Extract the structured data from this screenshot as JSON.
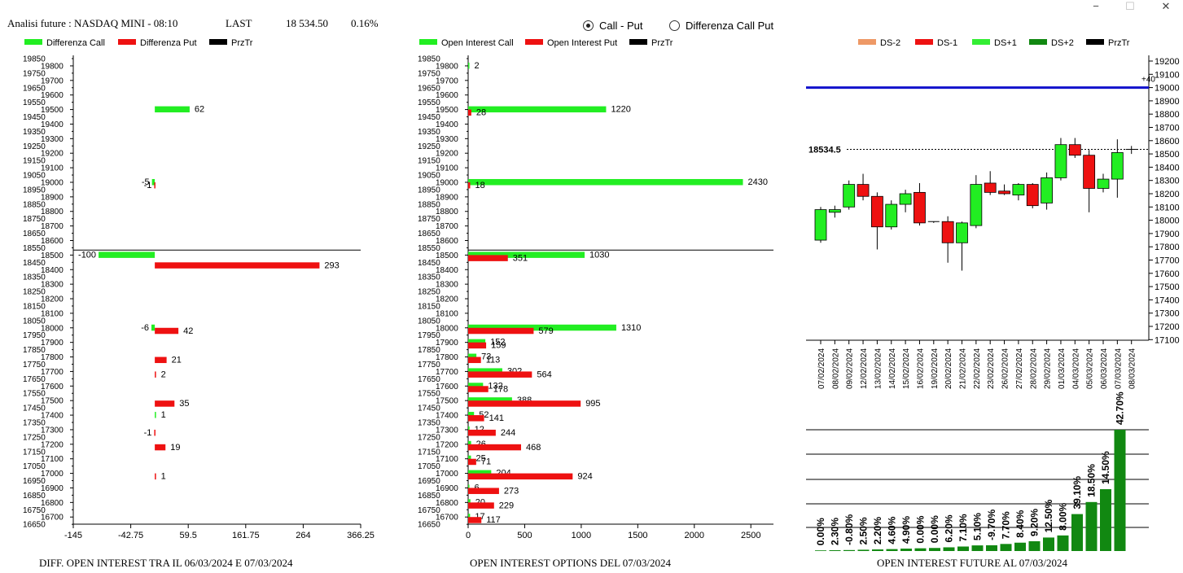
{
  "header": {
    "title": "Analisi future : NASDAQ MINI - 08:10",
    "last_label": "LAST",
    "last_value": "18 534.50",
    "change": "0.16%"
  },
  "window_controls": {
    "minimize": "−",
    "maximize": "☐",
    "close": "✕"
  },
  "radio": {
    "option1": "Call - Put",
    "option2": "Differenza Call Put",
    "selected": "Call - Put"
  },
  "colors": {
    "call": "#22ee22",
    "put": "#ee1111",
    "price": "#000000",
    "blue_level": "#1111cc",
    "future_bar": "#118811"
  },
  "chart_data": [
    {
      "type": "bar",
      "orientation": "horizontal",
      "caption": "DIFF. OPEN INTEREST TRA IL 06/03/2024 E 07/03/2024",
      "legend": [
        "Differenza Call",
        "Differenza Put",
        "PrzTr"
      ],
      "xlim": [
        -145,
        366.25
      ],
      "xticks": [
        "-145",
        "-42.75",
        "59.5",
        "161.75",
        "264",
        "366.25"
      ],
      "ylim": [
        16650,
        19850
      ],
      "price_line": 18534.5,
      "series": [
        {
          "name": "Differenza Call",
          "points": [
            [
              19500,
              62
            ],
            [
              19000,
              -5
            ],
            [
              18500,
              -100
            ],
            [
              18000,
              -6
            ],
            [
              17400,
              1
            ]
          ]
        },
        {
          "name": "Differenza Put",
          "points": [
            [
              19000,
              -1
            ],
            [
              18450,
              293
            ],
            [
              18000,
              42
            ],
            [
              17800,
              21
            ],
            [
              17700,
              2
            ],
            [
              17500,
              35
            ],
            [
              17300,
              -1
            ],
            [
              17200,
              19
            ],
            [
              17000,
              1
            ]
          ]
        }
      ]
    },
    {
      "type": "bar",
      "orientation": "horizontal",
      "caption": "OPEN INTEREST OPTIONS DEL 07/03/2024",
      "legend": [
        "Open Interest Call",
        "Open Interest Put",
        "PrzTr"
      ],
      "xlim": [
        0,
        2700
      ],
      "xticks": [
        "0",
        "500",
        "1000",
        "1500",
        "2000",
        "2500"
      ],
      "ylim": [
        16650,
        19850
      ],
      "price_line": 18534.5,
      "series": [
        {
          "name": "Open Interest Call",
          "points": [
            [
              19800,
              2
            ],
            [
              19500,
              1220
            ],
            [
              19000,
              2430
            ],
            [
              18500,
              1030
            ],
            [
              18000,
              1310
            ],
            [
              17900,
              152
            ],
            [
              17800,
              73
            ],
            [
              17700,
              302
            ],
            [
              17600,
              132
            ],
            [
              17500,
              388
            ],
            [
              17400,
              52
            ],
            [
              17300,
              12
            ],
            [
              17200,
              26
            ],
            [
              17100,
              25
            ],
            [
              17000,
              204
            ],
            [
              16900,
              6
            ],
            [
              16800,
              20
            ],
            [
              16700,
              17
            ]
          ]
        },
        {
          "name": "Open Interest Put",
          "points": [
            [
              19500,
              28
            ],
            [
              19000,
              18
            ],
            [
              18500,
              351
            ],
            [
              18000,
              579
            ],
            [
              17900,
              159
            ],
            [
              17800,
              113
            ],
            [
              17700,
              564
            ],
            [
              17600,
              178
            ],
            [
              17500,
              995
            ],
            [
              17400,
              141
            ],
            [
              17300,
              244
            ],
            [
              17200,
              468
            ],
            [
              17100,
              71
            ],
            [
              17000,
              924
            ],
            [
              16900,
              273
            ],
            [
              16800,
              229
            ],
            [
              16700,
              117
            ]
          ]
        }
      ]
    },
    {
      "type": "candlestick",
      "legend": [
        "DS-2",
        "DS-1",
        "DS+1",
        "DS+2",
        "PrzTr"
      ],
      "legend_colors": [
        "#ee9966",
        "#ee1111",
        "#33ee33",
        "#118811",
        "#000000"
      ],
      "ylim": [
        17100,
        19200
      ],
      "price_label": "18534.5",
      "price": 18534.5,
      "level": 19000,
      "level_label": "+40",
      "dates": [
        "07/02/2024",
        "08/02/2024",
        "09/02/2024",
        "12/02/2024",
        "13/02/2024",
        "14/02/2024",
        "15/02/2024",
        "16/02/2024",
        "19/02/2024",
        "20/02/2024",
        "21/02/2024",
        "22/02/2024",
        "23/02/2024",
        "26/02/2024",
        "27/02/2024",
        "28/02/2024",
        "29/02/2024",
        "01/03/2024",
        "04/03/2024",
        "05/03/2024",
        "06/03/2024",
        "07/03/2024",
        "08/03/2024"
      ],
      "ohlc": [
        [
          17850,
          18100,
          17830,
          18080
        ],
        [
          18060,
          18110,
          18020,
          18080
        ],
        [
          18100,
          18300,
          18080,
          18270
        ],
        [
          18270,
          18350,
          18150,
          18180
        ],
        [
          18180,
          18210,
          17780,
          17950
        ],
        [
          17950,
          18150,
          17930,
          18120
        ],
        [
          18120,
          18230,
          18060,
          18200
        ],
        [
          18210,
          18280,
          17960,
          17980
        ],
        [
          17980,
          17990,
          17980,
          17990
        ],
        [
          17990,
          18030,
          17680,
          17830
        ],
        [
          17830,
          17990,
          17620,
          17980
        ],
        [
          17960,
          18340,
          17940,
          18270
        ],
        [
          18280,
          18370,
          18190,
          18210
        ],
        [
          18220,
          18270,
          18190,
          18200
        ],
        [
          18190,
          18280,
          18150,
          18270
        ],
        [
          18270,
          18280,
          18090,
          18110
        ],
        [
          18130,
          18360,
          18080,
          18320
        ],
        [
          18320,
          18620,
          18300,
          18570
        ],
        [
          18570,
          18620,
          18470,
          18490
        ],
        [
          18490,
          18530,
          18060,
          18240
        ],
        [
          18240,
          18350,
          18210,
          18310
        ],
        [
          18310,
          18610,
          18170,
          18510
        ],
        [
          18534.5,
          18560,
          18500,
          18534.5
        ]
      ],
      "candle_colors": [
        "green",
        "green",
        "green",
        "red",
        "red",
        "green",
        "green",
        "red",
        "black",
        "red",
        "green",
        "green",
        "red",
        "red",
        "green",
        "red",
        "green",
        "green",
        "red",
        "red",
        "green",
        "green",
        "black"
      ]
    },
    {
      "type": "bar",
      "caption": "OPEN INTEREST FUTURE AL 07/03/2024",
      "labels": [
        "0.00%",
        "2.30%",
        "-0.80%",
        "2.50%",
        "2.20%",
        "4.60%",
        "4.90%",
        "0.00%",
        "0.00%",
        "6.20%",
        "7.10%",
        "5.10%",
        "-9.70%",
        "7.70%",
        "8.40%",
        "9.20%",
        "12.50%",
        "8.00%",
        "39.10%",
        "18.50%",
        "14.50%",
        "42.70%"
      ],
      "values": [
        0.4,
        0.5,
        0.6,
        0.8,
        1.0,
        1.2,
        1.5,
        1.7,
        1.9,
        2.3,
        2.8,
        3.5,
        3.6,
        4.4,
        5.2,
        6.1,
        8.4,
        9.7,
        23,
        30.5,
        38.5,
        75.5
      ]
    }
  ]
}
